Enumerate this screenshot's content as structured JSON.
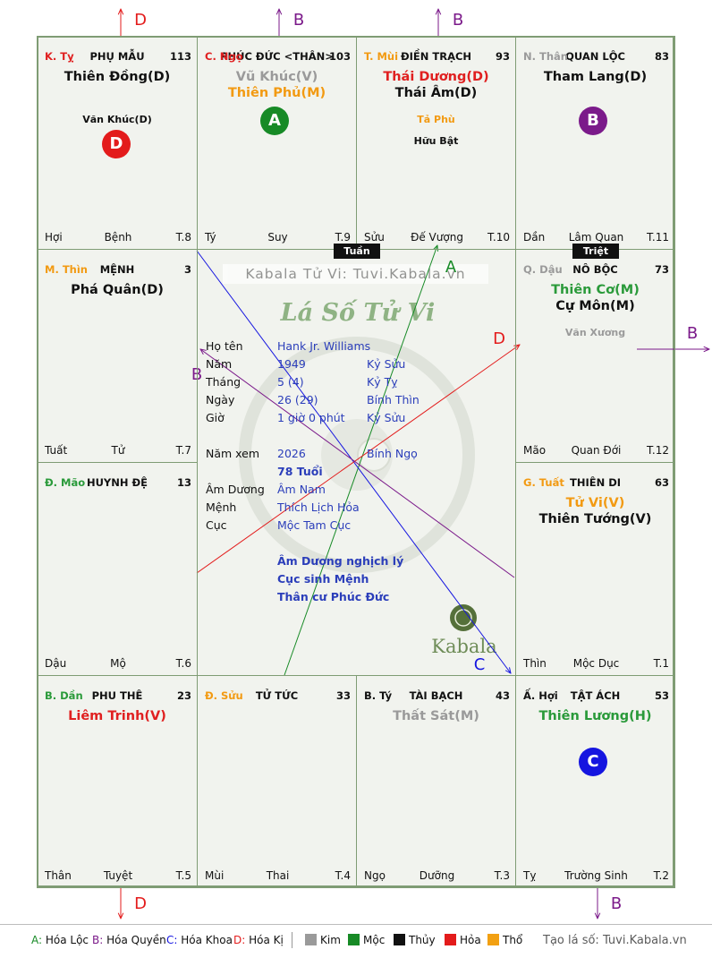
{
  "cells": [
    {
      "key": "ty",
      "can": "K. Tỵ",
      "can_color": "#e02020",
      "cung": "PHỤ MẪU",
      "num": "113",
      "stars": [
        {
          "t": "Thiên Đồng(D)",
          "c": "#111"
        }
      ],
      "minor": [
        {
          "t": "Văn Khúc(D)",
          "c": "#111"
        }
      ],
      "ftr": [
        "Hợi",
        "Bệnh",
        "T.8"
      ]
    },
    {
      "key": "ngo",
      "can": "C. Ngọ",
      "can_color": "#e02020",
      "cung": "PHÚC ĐỨC <THÂN>",
      "num": "103",
      "stars": [
        {
          "t": "Vũ Khúc(V)",
          "c": "#9a9a9a"
        },
        {
          "t": "Thiên Phủ(M)",
          "c": "#f29a12"
        }
      ],
      "minor": [],
      "ftr": [
        "Tý",
        "Suy",
        "T.9"
      ]
    },
    {
      "key": "mui",
      "can": "T. Mùi",
      "can_color": "#f29a12",
      "cung": "ĐIỀN TRẠCH",
      "num": "93",
      "stars": [
        {
          "t": "Thái Dương(D)",
          "c": "#e02020"
        },
        {
          "t": "Thái Âm(D)",
          "c": "#111"
        }
      ],
      "minor": [
        {
          "t": "Tả Phù",
          "c": "#f29a12"
        },
        {
          "t": "Hữu Bật",
          "c": "#111"
        }
      ],
      "ftr": [
        "Sửu",
        "Đế Vượng",
        "T.10"
      ]
    },
    {
      "key": "than",
      "can": "N. Thân",
      "can_color": "#9a9a9a",
      "cung": "QUAN LỘC",
      "num": "83",
      "stars": [
        {
          "t": "Tham Lang(D)",
          "c": "#111"
        }
      ],
      "minor": [],
      "ftr": [
        "Dần",
        "Lâm Quan",
        "T.11"
      ]
    },
    {
      "key": "thin",
      "can": "M. Thìn",
      "can_color": "#f29a12",
      "cung": "MỆNH",
      "num": "3",
      "stars": [
        {
          "t": "Phá Quân(D)",
          "c": "#111"
        }
      ],
      "minor": [],
      "ftr": [
        "Tuất",
        "Tử",
        "T.7"
      ]
    },
    {
      "key": "dau",
      "can": "Q. Dậu",
      "can_color": "#9a9a9a",
      "cung": "NÔ BỘC",
      "num": "73",
      "stars": [
        {
          "t": "Thiên Cơ(M)",
          "c": "#2a9a3a"
        },
        {
          "t": "Cự Môn(M)",
          "c": "#111"
        }
      ],
      "minor": [
        {
          "t": "Văn Xương",
          "c": "#9a9a9a"
        }
      ],
      "ftr": [
        "Mão",
        "Quan Đới",
        "T.12"
      ]
    },
    {
      "key": "mao",
      "can": "Đ. Mão",
      "can_color": "#2a9a3a",
      "cung": "HUYNH ĐỆ",
      "num": "13",
      "stars": [],
      "minor": [],
      "ftr": [
        "Dậu",
        "Mộ",
        "T.6"
      ]
    },
    {
      "key": "tuat",
      "can": "G. Tuất",
      "can_color": "#f29a12",
      "cung": "THIÊN DI",
      "num": "63",
      "stars": [
        {
          "t": "Tử Vi(V)",
          "c": "#f29a12"
        },
        {
          "t": "Thiên Tướng(V)",
          "c": "#111"
        }
      ],
      "minor": [],
      "ftr": [
        "Thìn",
        "Mộc Dục",
        "T.1"
      ]
    },
    {
      "key": "dan",
      "can": "B. Dần",
      "can_color": "#2a9a3a",
      "cung": "PHU THÊ",
      "num": "23",
      "stars": [
        {
          "t": "Liêm Trinh(V)",
          "c": "#e02020"
        }
      ],
      "minor": [],
      "ftr": [
        "Thân",
        "Tuyệt",
        "T.5"
      ]
    },
    {
      "key": "suu",
      "can": "Đ. Sửu",
      "can_color": "#f29a12",
      "cung": "TỬ TỨC",
      "num": "33",
      "stars": [],
      "minor": [],
      "ftr": [
        "Mùi",
        "Thai",
        "T.4"
      ]
    },
    {
      "key": "ty2",
      "can": "B. Tý",
      "can_color": "#111",
      "cung": "TÀI BẠCH",
      "num": "43",
      "stars": [
        {
          "t": "Thất Sát(M)",
          "c": "#9a9a9a"
        }
      ],
      "minor": [],
      "ftr": [
        "Ngọ",
        "Dưỡng",
        "T.3"
      ]
    },
    {
      "key": "hoi",
      "can": "Ấ. Hợi",
      "can_color": "#111",
      "cung": "TẬT ÁCH",
      "num": "53",
      "stars": [
        {
          "t": "Thiên Lương(H)",
          "c": "#2a9a3a"
        }
      ],
      "minor": [],
      "ftr": [
        "Tỵ",
        "Trường Sinh",
        "T.2"
      ]
    }
  ],
  "markers": {
    "tuan": "Tuần",
    "triet": "Triệt"
  },
  "circles": [
    {
      "label": "D",
      "color": "#e31b1b"
    },
    {
      "label": "A",
      "color": "#178a26"
    },
    {
      "label": "B",
      "color": "#7b1a8a"
    },
    {
      "label": "C",
      "color": "#1515e0"
    }
  ],
  "arrow_labels": [
    "D",
    "B",
    "B",
    "A",
    "D",
    "B",
    "B",
    "C",
    "D",
    "B"
  ],
  "center": {
    "watermark": "Kabala Tử Vi: Tuvi.Kabala.vn",
    "title": "Lá Số Tử Vi",
    "logo": "Kabala",
    "rows": [
      {
        "l": "Họ tên",
        "v1": "Hank Jr. Williams",
        "v2": ""
      },
      {
        "l": "Năm",
        "v1": "1949",
        "v2": "Kỷ Sửu"
      },
      {
        "l": "Tháng",
        "v1": "5  (4)",
        "v2": "Kỷ Tỵ"
      },
      {
        "l": "Ngày",
        "v1": "26  (29)",
        "v2": "Bính Thìn"
      },
      {
        "l": "Giờ",
        "v1": "1 giờ 0 phút",
        "v2": "Kỷ Sửu"
      },
      {
        "l": "Năm xem",
        "v1": "2026",
        "v2": "Bính Ngọ"
      },
      {
        "l": "",
        "v1": "78 Tuổi",
        "v2": ""
      },
      {
        "l": "Âm Dương",
        "v1": "Âm Nam",
        "v2": ""
      },
      {
        "l": "Mệnh",
        "v1": "Thích Lịch Hỏa",
        "v2": ""
      },
      {
        "l": "Cục",
        "v1": "Mộc Tam Cục",
        "v2": ""
      }
    ],
    "notes": [
      "Âm Dương nghịch lý",
      "Cục sinh Mệnh",
      "Thân cư Phúc Đức"
    ]
  },
  "legend": {
    "hoa": [
      {
        "t": "A: Hóa Lộc",
        "c": "#178a26"
      },
      {
        "t": "B: Hóa Quyền",
        "c": "#7b1a8a"
      },
      {
        "t": "C: Hóa Khoa",
        "c": "#1515e0"
      },
      {
        "t": "D: Hóa Kị",
        "c": "#e31b1b"
      }
    ],
    "hanh": [
      {
        "t": "Kim",
        "c": "#9a9a9a"
      },
      {
        "t": "Mộc",
        "c": "#178a26"
      },
      {
        "t": "Thủy",
        "c": "#111111"
      },
      {
        "t": "Hỏa",
        "c": "#e31b1b"
      },
      {
        "t": "Thổ",
        "c": "#f2a012"
      }
    ],
    "credit": "Tạo lá số: Tuvi.Kabala.vn"
  }
}
